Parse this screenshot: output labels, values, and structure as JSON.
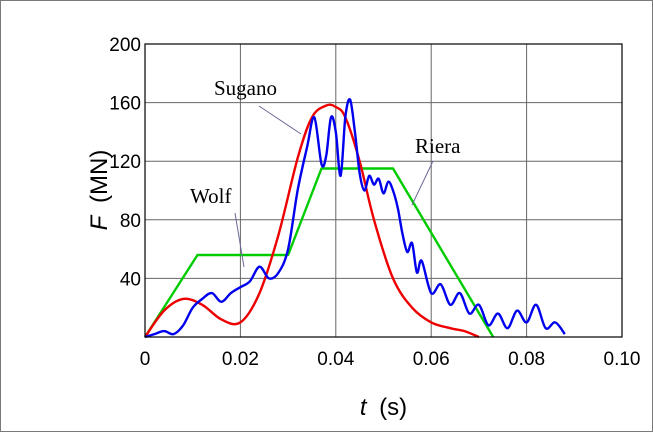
{
  "chart_data": {
    "type": "line",
    "xlabel_symbol": "t",
    "xlabel_unit": "(s)",
    "ylabel_symbol": "F",
    "ylabel_unit": "(MN)",
    "xlim": [
      0,
      0.1
    ],
    "ylim": [
      0,
      200
    ],
    "xticks": [
      "0",
      "0.02",
      "0.04",
      "0.06",
      "0.08",
      "0.10"
    ],
    "xtick_values": [
      0,
      0.02,
      0.04,
      0.06,
      0.08,
      0.1
    ],
    "yticks": [
      "40",
      "80",
      "120",
      "160",
      "200"
    ],
    "ytick_values": [
      40,
      80,
      120,
      160,
      200
    ],
    "grid": true,
    "series": [
      {
        "name": "Riera",
        "color": "#00cc00",
        "x": [
          0.0,
          0.011,
          0.03,
          0.037,
          0.052,
          0.073
        ],
        "y": [
          0,
          56,
          56,
          115,
          115,
          0
        ]
      },
      {
        "name": "Sugano",
        "color": "#ee0000",
        "x": [
          0.0,
          0.004,
          0.008,
          0.012,
          0.016,
          0.02,
          0.024,
          0.028,
          0.032,
          0.035,
          0.038,
          0.04,
          0.042,
          0.045,
          0.048,
          0.052,
          0.056,
          0.06,
          0.064,
          0.067,
          0.07
        ],
        "y": [
          0,
          18,
          26,
          22,
          12,
          10,
          30,
          70,
          122,
          150,
          158,
          157,
          150,
          120,
          80,
          40,
          20,
          10,
          6,
          4,
          0
        ]
      },
      {
        "name": "Wolf",
        "color": "#0000ee",
        "x": [
          0.0,
          0.002,
          0.004,
          0.006,
          0.008,
          0.01,
          0.012,
          0.014,
          0.016,
          0.018,
          0.02,
          0.022,
          0.024,
          0.026,
          0.028,
          0.03,
          0.032,
          0.034,
          0.0355,
          0.037,
          0.038,
          0.039,
          0.04,
          0.041,
          0.042,
          0.043,
          0.044,
          0.045,
          0.046,
          0.047,
          0.048,
          0.049,
          0.05,
          0.051,
          0.052,
          0.053,
          0.054,
          0.055,
          0.056,
          0.057,
          0.058,
          0.06,
          0.062,
          0.064,
          0.066,
          0.068,
          0.07,
          0.072,
          0.074,
          0.076,
          0.078,
          0.08,
          0.082,
          0.084,
          0.086,
          0.088
        ],
        "y": [
          0,
          2,
          4,
          2,
          8,
          20,
          26,
          30,
          24,
          30,
          34,
          38,
          48,
          40,
          44,
          60,
          100,
          130,
          150,
          118,
          124,
          150,
          140,
          110,
          150,
          162,
          140,
          112,
          100,
          110,
          104,
          108,
          98,
          106,
          100,
          88,
          70,
          58,
          64,
          44,
          52,
          30,
          36,
          22,
          30,
          16,
          22,
          8,
          16,
          6,
          18,
          10,
          22,
          6,
          10,
          2
        ]
      }
    ],
    "annotations": [
      "Sugano",
      "Riera",
      "Wolf"
    ]
  }
}
